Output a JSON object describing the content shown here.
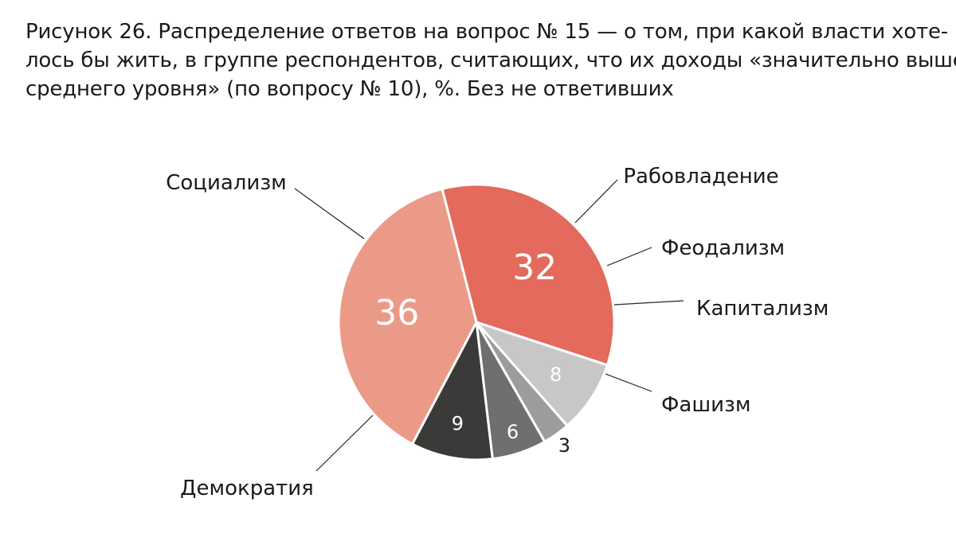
{
  "title_lines": [
    "Рисунок 26. Распределение ответов на вопрос № 15 — о том, при какой власти хоте-",
    "лось бы жить, в группе респондентов, считающих, что их доходы «значительно выше",
    "среднего уровня» (по вопросу № 10), %. Без не ответивших"
  ],
  "chart_data": {
    "type": "pie",
    "title": "Рисунок 26. Распределение ответов на вопрос № 15 — о том, при какой власти хотелось бы жить, в группе респондентов, считающих, что их доходы «значительно выше среднего уровня» (по вопросу № 10), %. Без не ответивших",
    "unit": "%",
    "slices": [
      {
        "label": "Социализм",
        "value": 32,
        "color": "#e36a5c"
      },
      {
        "label": "Рабовладение",
        "value": 8,
        "color": "#c6c7c6"
      },
      {
        "label": "Феодализм",
        "value": 3,
        "color": "#9c9c9c"
      },
      {
        "label": "Капитализм",
        "value": 6,
        "color": "#6f6f6f"
      },
      {
        "label": "Фашизм",
        "value": 9,
        "color": "#3a3a39"
      },
      {
        "label": "Демократия",
        "value": 36,
        "color": "#ec9a88"
      }
    ],
    "legend": "none"
  }
}
